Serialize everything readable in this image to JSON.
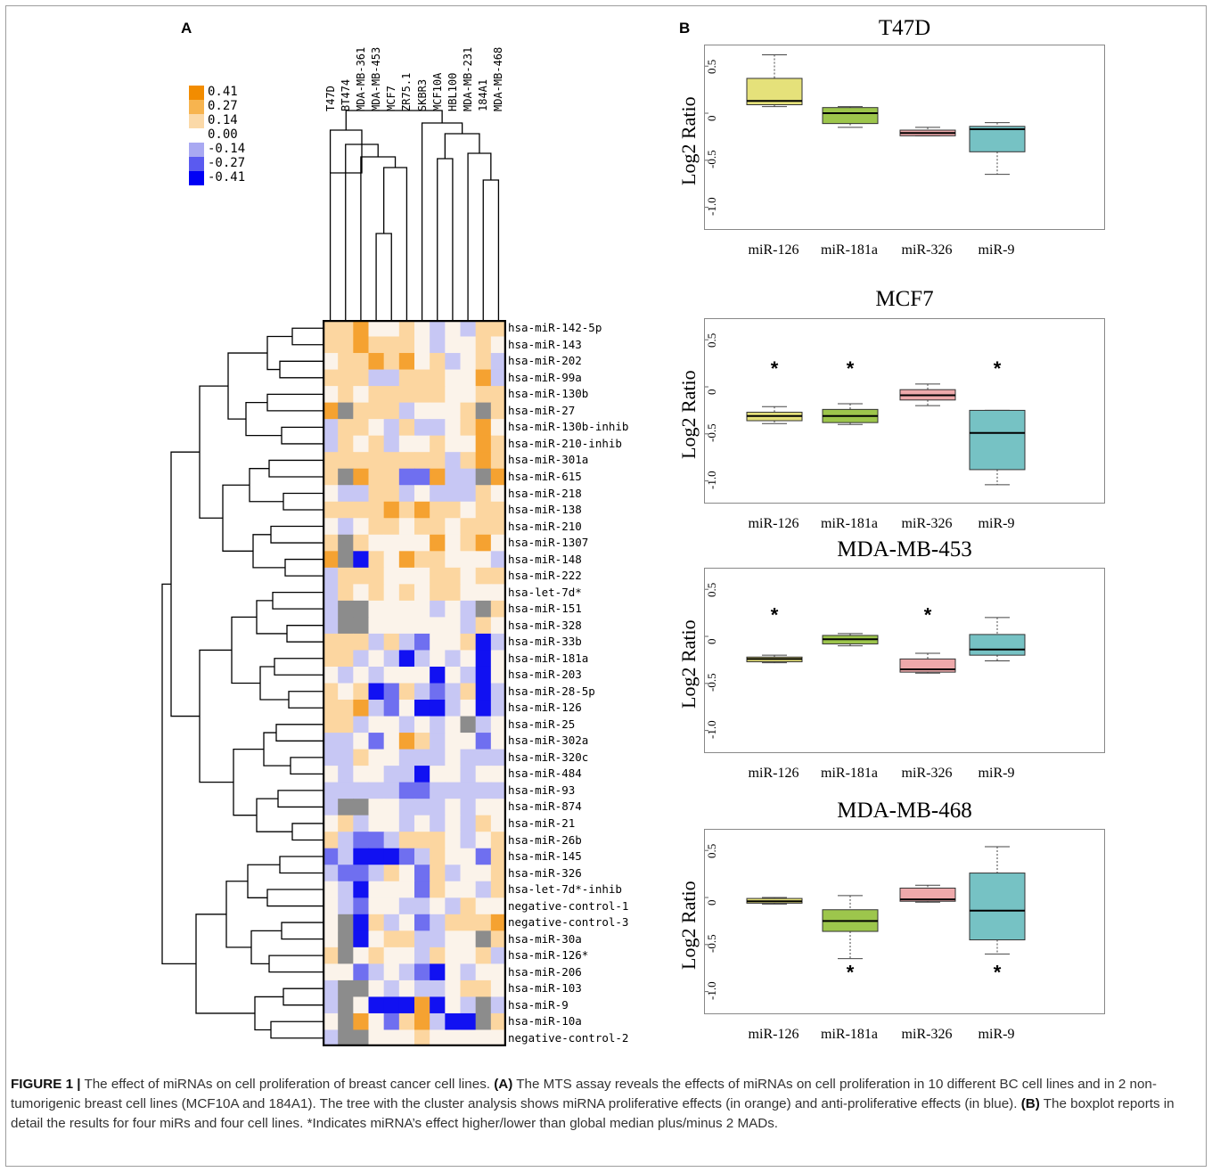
{
  "panels": {
    "a": "A",
    "b": "B"
  },
  "legend": [
    {
      "label": "0.41",
      "color": "#f28c00"
    },
    {
      "label": "0.27",
      "color": "#f7b44f"
    },
    {
      "label": "0.14",
      "color": "#fbd9a8"
    },
    {
      "label": "0.00",
      "color": "#ffffff"
    },
    {
      "label": "-0.14",
      "color": "#a9a9f2"
    },
    {
      "label": "-0.27",
      "color": "#5a5af0"
    },
    {
      "label": "-0.41",
      "color": "#0000f5"
    }
  ],
  "heatmap": {
    "columns": [
      "T47D",
      "BT474",
      "MDA-MB-361",
      "MDA-MB-453",
      "MCF7",
      "ZR75.1",
      "SKBR3",
      "MCF10A",
      "HBL100",
      "MDA-MB-231",
      "184A1",
      "MDA-MB-468"
    ],
    "rows": [
      "hsa-miR-142-5p",
      "hsa-miR-143",
      "hsa-miR-202",
      "hsa-miR-99a",
      "hsa-miR-130b",
      "hsa-miR-27",
      "hsa-miR-130b-inhib",
      "hsa-miR-210-inhib",
      "hsa-miR-301a",
      "hsa-miR-615",
      "hsa-miR-218",
      "hsa-miR-138",
      "hsa-miR-210",
      "hsa-miR-1307",
      "hsa-miR-148",
      "hsa-miR-222",
      "hsa-let-7d*",
      "hsa-miR-151",
      "hsa-miR-328",
      "hsa-miR-33b",
      "hsa-miR-181a",
      "hsa-miR-203",
      "hsa-miR-28-5p",
      "hsa-miR-126",
      "hsa-miR-25",
      "hsa-miR-302a",
      "hsa-miR-320c",
      "hsa-miR-484",
      "hsa-miR-93",
      "hsa-miR-874",
      "hsa-miR-21",
      "hsa-miR-26b",
      "hsa-miR-145",
      "hsa-miR-326",
      "hsa-let-7d*-inhib",
      "negative-control-1",
      "negative-control-3",
      "hsa-miR-30a",
      "hsa-miR-126*",
      "hsa-miR-206",
      "hsa-miR-103",
      "hsa-miR-9",
      "hsa-miR-10a",
      "negative-control-2"
    ],
    "na_color": "#8c8c8c",
    "cells": [
      [
        1,
        1,
        2,
        0,
        0,
        1,
        0,
        -1,
        0,
        -1,
        1,
        1
      ],
      [
        1,
        1,
        2,
        1,
        1,
        1,
        0,
        -1,
        0,
        0,
        1,
        0
      ],
      [
        0,
        1,
        1,
        2,
        1,
        2,
        0,
        1,
        -1,
        0,
        1,
        -1
      ],
      [
        1,
        1,
        1,
        -1,
        -1,
        1,
        1,
        1,
        0,
        0,
        2,
        -1
      ],
      [
        0,
        1,
        0,
        1,
        1,
        1,
        1,
        1,
        0,
        0,
        1,
        1
      ],
      [
        2,
        9,
        1,
        1,
        1,
        -1,
        0,
        0,
        0,
        1,
        9,
        1
      ],
      [
        -1,
        1,
        1,
        0,
        -1,
        1,
        -1,
        -1,
        0,
        1,
        2,
        0
      ],
      [
        -1,
        1,
        0,
        1,
        -1,
        0,
        0,
        1,
        0,
        0,
        2,
        1
      ],
      [
        1,
        1,
        1,
        1,
        1,
        1,
        1,
        1,
        -1,
        1,
        2,
        1
      ],
      [
        1,
        9,
        2,
        1,
        1,
        -2,
        -2,
        2,
        -1,
        -1,
        9,
        2
      ],
      [
        0,
        -1,
        -1,
        1,
        1,
        -1,
        0,
        -1,
        -1,
        -1,
        1,
        0
      ],
      [
        1,
        1,
        1,
        1,
        2,
        1,
        2,
        1,
        1,
        0,
        1,
        1
      ],
      [
        0,
        -1,
        0,
        1,
        1,
        0,
        1,
        1,
        0,
        1,
        1,
        1
      ],
      [
        1,
        9,
        1,
        0,
        0,
        0,
        0,
        2,
        0,
        1,
        2,
        0
      ],
      [
        2,
        9,
        -3,
        1,
        0,
        2,
        1,
        1,
        0,
        0,
        0,
        -1
      ],
      [
        -1,
        1,
        1,
        1,
        0,
        0,
        0,
        1,
        1,
        0,
        1,
        1
      ],
      [
        -1,
        1,
        0,
        1,
        0,
        1,
        0,
        1,
        1,
        0,
        0,
        0
      ],
      [
        -1,
        9,
        9,
        0,
        0,
        0,
        0,
        -1,
        0,
        -1,
        9,
        1
      ],
      [
        -1,
        9,
        9,
        0,
        0,
        0,
        0,
        0,
        0,
        -1,
        1,
        0
      ],
      [
        1,
        1,
        1,
        -1,
        1,
        -1,
        -2,
        0,
        0,
        1,
        -3,
        -1
      ],
      [
        1,
        1,
        -1,
        0,
        -1,
        -3,
        -1,
        0,
        -1,
        0,
        -3,
        0
      ],
      [
        0,
        -1,
        0,
        -1,
        0,
        0,
        0,
        -3,
        0,
        -1,
        -3,
        0
      ],
      [
        1,
        0,
        1,
        -3,
        -2,
        1,
        -1,
        -2,
        -1,
        1,
        -3,
        -1
      ],
      [
        1,
        1,
        2,
        -1,
        -2,
        0,
        -3,
        -3,
        -1,
        0,
        -3,
        -1
      ],
      [
        1,
        1,
        -1,
        0,
        0,
        -1,
        0,
        -1,
        0,
        9,
        -1,
        0
      ],
      [
        -1,
        -1,
        0,
        -2,
        0,
        2,
        1,
        -1,
        0,
        0,
        -2,
        0
      ],
      [
        -1,
        -1,
        1,
        0,
        0,
        -1,
        -1,
        -1,
        0,
        -1,
        -1,
        -1
      ],
      [
        0,
        -1,
        0,
        0,
        -1,
        -1,
        -3,
        0,
        0,
        -1,
        0,
        0
      ],
      [
        -1,
        -1,
        -1,
        -1,
        -1,
        -2,
        -2,
        -1,
        -1,
        -1,
        -1,
        -1
      ],
      [
        -1,
        9,
        9,
        0,
        0,
        -1,
        -1,
        -1,
        0,
        -1,
        0,
        0
      ],
      [
        0,
        1,
        -1,
        0,
        0,
        -1,
        0,
        -1,
        0,
        -1,
        1,
        0
      ],
      [
        1,
        -1,
        -2,
        -2,
        -1,
        1,
        1,
        1,
        0,
        -1,
        0,
        1
      ],
      [
        -2,
        -1,
        -3,
        -3,
        -3,
        -2,
        -1,
        1,
        0,
        0,
        -2,
        1
      ],
      [
        -1,
        -2,
        -2,
        -1,
        1,
        0,
        -2,
        1,
        -1,
        0,
        0,
        1
      ],
      [
        0,
        -1,
        -3,
        0,
        0,
        0,
        -2,
        1,
        0,
        0,
        -1,
        1
      ],
      [
        0,
        -1,
        -2,
        0,
        0,
        -1,
        -1,
        0,
        -1,
        1,
        0,
        0
      ],
      [
        0,
        9,
        -3,
        1,
        -1,
        0,
        -2,
        -1,
        1,
        1,
        1,
        2
      ],
      [
        0,
        9,
        -3,
        0,
        1,
        1,
        -1,
        -1,
        0,
        0,
        9,
        1
      ],
      [
        1,
        9,
        0,
        1,
        0,
        0,
        -1,
        1,
        0,
        0,
        1,
        -1
      ],
      [
        0,
        0,
        -2,
        -1,
        0,
        -1,
        -2,
        -3,
        0,
        -1,
        0,
        0
      ],
      [
        -1,
        9,
        9,
        0,
        -1,
        0,
        -1,
        -1,
        0,
        1,
        1,
        0
      ],
      [
        -1,
        9,
        0,
        -3,
        -3,
        -3,
        2,
        -3,
        0,
        -1,
        9,
        -1
      ],
      [
        0,
        9,
        2,
        0,
        -2,
        1,
        2,
        -1,
        -3,
        -3,
        9,
        1
      ],
      [
        -1,
        9,
        9,
        0,
        0,
        0,
        1,
        0,
        0,
        0,
        0,
        0
      ]
    ]
  },
  "chart_data": [
    {
      "type": "box",
      "title": "T47D",
      "ylabel": "Log2 Ratio",
      "yticks": [
        "0.5",
        "0",
        "-0.5",
        "-1.0"
      ],
      "ylim": [
        -1.25,
        0.72
      ],
      "categories": [
        "miR-126",
        "miR-181a",
        "miR-326",
        "miR-9"
      ],
      "boxes": [
        {
          "min": 0.07,
          "q1": 0.09,
          "median": 0.13,
          "q3": 0.37,
          "max": 0.62,
          "color": "#e5e17a",
          "star": ""
        },
        {
          "min": -0.15,
          "q1": -0.11,
          "median": 0.0,
          "q3": 0.06,
          "max": 0.07,
          "color": "#9dc64c",
          "star": ""
        },
        {
          "min": -0.24,
          "q1": -0.24,
          "median": -0.21,
          "q3": -0.18,
          "max": -0.15,
          "color": "#eea9ab",
          "star": ""
        },
        {
          "min": -0.65,
          "q1": -0.41,
          "median": -0.17,
          "q3": -0.14,
          "max": -0.1,
          "color": "#76c2c4",
          "star": ""
        }
      ]
    },
    {
      "type": "box",
      "title": "MCF7",
      "ylabel": "Log2 Ratio",
      "yticks": [
        "0.5",
        "0",
        "-0.5",
        "-1.0"
      ],
      "ylim": [
        -1.25,
        0.72
      ],
      "categories": [
        "miR-126",
        "miR-181a",
        "miR-326",
        "miR-9"
      ],
      "boxes": [
        {
          "min": -0.39,
          "q1": -0.36,
          "median": -0.31,
          "q3": -0.27,
          "max": -0.21,
          "color": "#e5e17a",
          "star": "*",
          "star_y": 0.22
        },
        {
          "min": -0.4,
          "q1": -0.38,
          "median": -0.31,
          "q3": -0.24,
          "max": -0.18,
          "color": "#9dc64c",
          "star": "*",
          "star_y": 0.22
        },
        {
          "min": -0.2,
          "q1": -0.14,
          "median": -0.09,
          "q3": -0.03,
          "max": 0.03,
          "color": "#eea9ab",
          "star": ""
        },
        {
          "min": -1.04,
          "q1": -0.88,
          "median": -0.49,
          "q3": -0.25,
          "max": -0.25,
          "color": "#76c2c4",
          "star": "*",
          "star_y": 0.22
        }
      ]
    },
    {
      "type": "box",
      "title": "MDA-MB-453",
      "ylabel": "Log2 Ratio",
      "yticks": [
        "0.5",
        "0",
        "-0.5",
        "-1.0"
      ],
      "ylim": [
        -1.25,
        0.72
      ],
      "categories": [
        "miR-126",
        "miR-181a",
        "miR-326",
        "miR-9"
      ],
      "boxes": [
        {
          "min": -0.28,
          "q1": -0.27,
          "median": -0.24,
          "q3": -0.22,
          "max": -0.2,
          "color": "#e5e17a",
          "star": "*",
          "star_y": 0.25
        },
        {
          "min": -0.1,
          "q1": -0.08,
          "median": -0.03,
          "q3": 0.01,
          "max": 0.03,
          "color": "#9dc64c",
          "star": ""
        },
        {
          "min": -0.39,
          "q1": -0.38,
          "median": -0.35,
          "q3": -0.24,
          "max": -0.18,
          "color": "#eea9ab",
          "star": "*",
          "star_y": 0.25
        },
        {
          "min": -0.26,
          "q1": -0.2,
          "median": -0.14,
          "q3": 0.02,
          "max": 0.2,
          "color": "#76c2c4",
          "star": ""
        }
      ]
    },
    {
      "type": "box",
      "title": "MDA-MB-468",
      "ylabel": "Log2 Ratio",
      "yticks": [
        "0.5",
        "0",
        "-0.5",
        "-1.0"
      ],
      "ylim": [
        -1.25,
        0.72
      ],
      "categories": [
        "miR-126",
        "miR-181a",
        "miR-326",
        "miR-9"
      ],
      "boxes": [
        {
          "min": -0.07,
          "q1": -0.06,
          "median": -0.04,
          "q3": -0.01,
          "max": 0.0,
          "color": "#e5e17a",
          "star": ""
        },
        {
          "min": -0.65,
          "q1": -0.36,
          "median": -0.25,
          "q3": -0.13,
          "max": 0.02,
          "color": "#9dc64c",
          "star": "*",
          "star_y": -0.77
        },
        {
          "min": -0.05,
          "q1": -0.04,
          "median": -0.02,
          "q3": 0.1,
          "max": 0.13,
          "color": "#eea9ab",
          "star": ""
        },
        {
          "min": -0.6,
          "q1": -0.45,
          "median": -0.14,
          "q3": 0.26,
          "max": 0.54,
          "color": "#76c2c4",
          "star": "*",
          "star_y": -0.77
        }
      ]
    }
  ],
  "caption": {
    "lead": "FIGURE 1 |",
    "t1": " The effect of miRNAs on cell proliferation of breast cancer cell lines. ",
    "a": "(A)",
    "t2": " The MTS assay reveals the effects of miRNAs on cell proliferation in 10 different BC cell lines and in 2 non-tumorigenic breast cell lines (MCF10A and 184A1). The tree with the cluster analysis shows miRNA proliferative effects (in orange) and anti-proliferative effects (in blue). ",
    "b": "(B)",
    "t3": " The boxplot reports in detail the results for four miRs and four cell lines. *Indicates miRNA’s effect higher/lower than global median plus/minus 2 MADs."
  }
}
